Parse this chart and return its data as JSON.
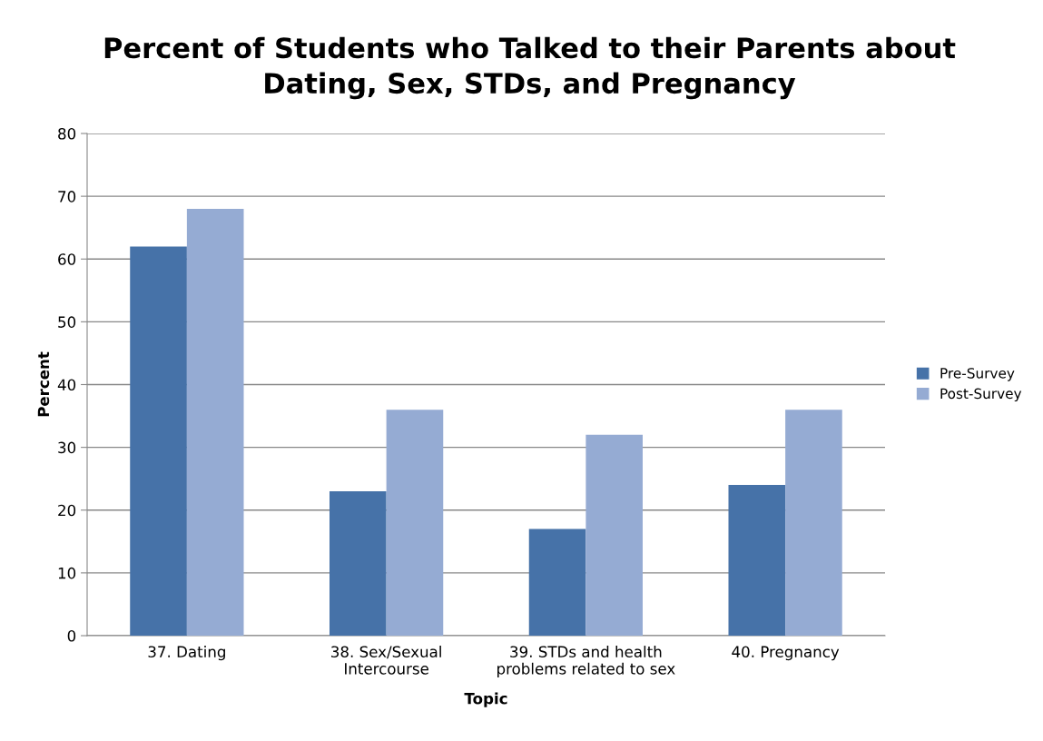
{
  "chart_data": {
    "type": "bar",
    "title": "Percent of Students who Talked to their Parents about\nDating, Sex, STDs, and Pregnancy",
    "xlabel": "Topic",
    "ylabel": "Percent",
    "categories": [
      "37. Dating",
      "38. Sex/Sexual\nIntercourse",
      "39. STDs and health\nproblems related to sex",
      "40. Pregnancy"
    ],
    "series": [
      {
        "name": "Pre-Survey",
        "color": "#4672a8",
        "values": [
          62,
          23,
          17,
          24
        ]
      },
      {
        "name": "Post-Survey",
        "color": "#95abd3",
        "values": [
          68,
          36,
          32,
          36
        ]
      }
    ],
    "ylim": [
      0,
      80
    ],
    "yticks": [
      0,
      10,
      20,
      30,
      40,
      50,
      60,
      70,
      80
    ],
    "grid": "y",
    "legend": "right"
  }
}
